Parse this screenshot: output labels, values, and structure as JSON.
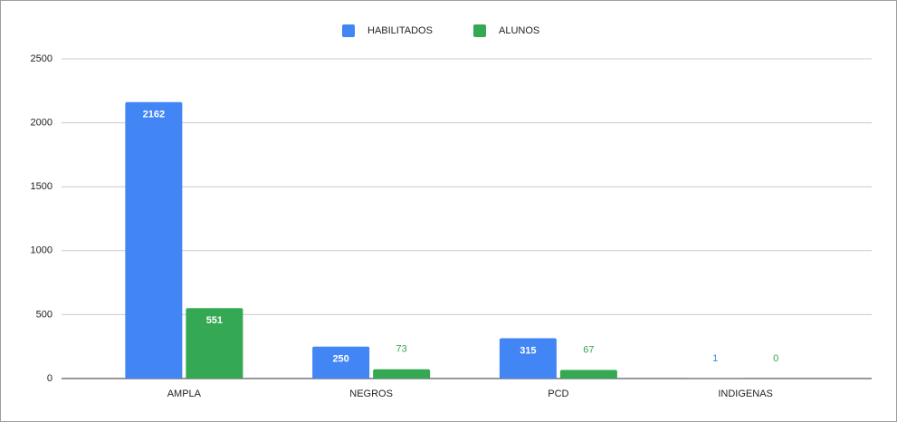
{
  "chart_data": {
    "type": "bar",
    "categories": [
      "AMPLA",
      "NEGROS",
      "PCD",
      "INDIGENAS"
    ],
    "series": [
      {
        "name": "HABILITADOS",
        "color": "#4285f4",
        "values": [
          2162,
          250,
          315,
          1
        ]
      },
      {
        "name": "ALUNOS",
        "color": "#34a853",
        "values": [
          551,
          73,
          67,
          0
        ]
      }
    ],
    "ylim": [
      0,
      2500
    ],
    "yticks": [
      0,
      500,
      1000,
      1500,
      2000,
      2500
    ],
    "grid": true,
    "legend": "top"
  }
}
